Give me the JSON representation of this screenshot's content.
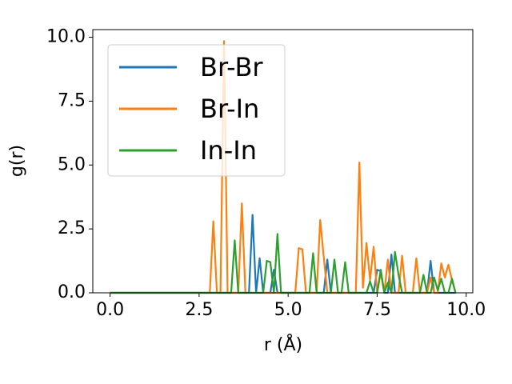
{
  "chart_data": {
    "type": "line",
    "xlabel": "r (Å)",
    "ylabel": "g(r)",
    "x": [
      0,
      0.1,
      0.2,
      0.3,
      0.4,
      0.5,
      0.6,
      0.7,
      0.8,
      0.9,
      1,
      1.1,
      1.2,
      1.3,
      1.4,
      1.5,
      1.6,
      1.7,
      1.8,
      1.9,
      2,
      2.1,
      2.2,
      2.3,
      2.4,
      2.5,
      2.6,
      2.7,
      2.8,
      2.9,
      3,
      3.1,
      3.2,
      3.3,
      3.4,
      3.5,
      3.6,
      3.7,
      3.8,
      3.9,
      4,
      4.1,
      4.2,
      4.3,
      4.4,
      4.5,
      4.6,
      4.7,
      4.8,
      4.9,
      5,
      5.1,
      5.2,
      5.3,
      5.4,
      5.5,
      5.6,
      5.7,
      5.8,
      5.9,
      6,
      6.1,
      6.2,
      6.3,
      6.4,
      6.5,
      6.6,
      6.7,
      6.8,
      6.9,
      7,
      7.1,
      7.2,
      7.3,
      7.4,
      7.5,
      7.6,
      7.7,
      7.8,
      7.9,
      8,
      8.1,
      8.2,
      8.3,
      8.4,
      8.5,
      8.6,
      8.7,
      8.8,
      8.9,
      9,
      9.1,
      9.2,
      9.3,
      9.4,
      9.5,
      9.6,
      9.7
    ],
    "series": [
      {
        "name": "Br-Br",
        "color": "#1f77b4",
        "values": [
          0,
          0,
          0,
          0,
          0,
          0,
          0,
          0,
          0,
          0,
          0,
          0,
          0,
          0,
          0,
          0,
          0,
          0,
          0,
          0,
          0,
          0,
          0,
          0,
          0,
          0,
          0,
          0,
          0,
          0,
          0,
          0,
          0,
          0,
          0,
          0,
          0,
          0,
          0,
          0,
          3.05,
          0,
          1.35,
          0,
          0,
          0,
          0.9,
          0,
          0,
          0,
          0,
          0,
          0,
          0,
          0,
          0,
          0,
          0,
          0,
          0,
          0,
          1.3,
          0,
          0,
          0,
          0,
          0,
          0,
          0,
          0,
          0,
          0,
          0,
          0,
          0,
          0.9,
          0.85,
          0,
          0,
          1.5,
          0,
          0,
          0,
          0,
          0,
          0,
          0,
          0,
          0,
          0,
          1.25,
          0,
          0,
          0,
          0,
          0,
          0,
          0
        ]
      },
      {
        "name": "Br-In",
        "color": "#ff7f0e",
        "values": [
          0,
          0,
          0,
          0,
          0,
          0,
          0,
          0,
          0,
          0,
          0,
          0,
          0,
          0,
          0,
          0,
          0,
          0,
          0,
          0,
          0,
          0,
          0,
          0,
          0,
          0,
          0,
          0,
          0,
          2.8,
          0,
          0,
          9.85,
          0,
          0,
          0,
          0,
          3.5,
          0,
          0,
          0,
          0,
          0,
          0,
          0,
          0,
          0,
          0,
          0,
          0,
          0,
          0,
          0,
          1.75,
          1.7,
          0,
          0,
          0,
          0,
          2.85,
          1.4,
          0,
          0,
          0,
          0,
          0,
          0,
          0,
          0,
          0,
          5.1,
          0.2,
          1.95,
          0.5,
          1.8,
          0,
          0.8,
          0,
          1.3,
          0,
          0,
          0,
          1.45,
          0,
          0,
          0,
          1.35,
          0,
          0,
          0,
          0.6,
          0,
          0,
          1.15,
          0.6,
          1.1,
          0.5,
          0
        ]
      },
      {
        "name": "In-In",
        "color": "#2ca02c",
        "values": [
          0,
          0,
          0,
          0,
          0,
          0,
          0,
          0,
          0,
          0,
          0,
          0,
          0,
          0,
          0,
          0,
          0,
          0,
          0,
          0,
          0,
          0,
          0,
          0,
          0,
          0,
          0,
          0,
          0,
          0,
          0,
          0,
          0,
          0,
          0,
          2.05,
          0,
          0,
          0,
          0,
          0,
          0,
          0,
          0,
          1.25,
          1.2,
          0,
          2.3,
          0,
          0,
          0,
          0,
          0,
          0,
          0,
          0,
          0,
          1.55,
          0,
          0,
          0,
          0,
          0,
          1.3,
          0,
          0,
          1.2,
          0,
          0,
          0,
          0,
          0,
          0,
          0.45,
          0,
          0,
          0.9,
          0,
          0.4,
          0,
          1.6,
          0.7,
          0,
          0,
          0,
          0,
          0,
          0,
          0.7,
          0,
          0,
          0.6,
          0.1,
          0.55,
          0,
          0,
          0.55,
          0
        ]
      }
    ],
    "xlim": [
      -0.485,
      10.185
    ],
    "xticks": [
      {
        "value": 0,
        "label": "0.0"
      },
      2.5,
      {
        "value": 5,
        "label": "5.0"
      },
      7.5,
      {
        "value": 10,
        "label": "10.0"
      }
    ],
    "ylim": [
      0,
      10.3
    ],
    "yticks": [
      {
        "value": 0,
        "label": "0.0"
      },
      2.5,
      {
        "value": 5,
        "label": "5.0"
      },
      7.5,
      {
        "value": 10,
        "label": "10.0"
      }
    ],
    "legend": "upper left"
  }
}
